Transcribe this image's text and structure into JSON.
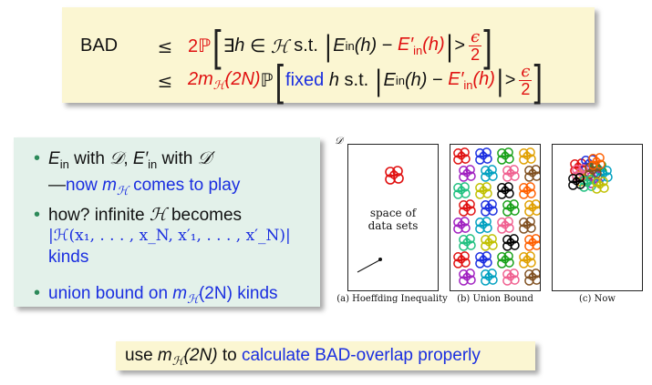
{
  "equation": {
    "bad": "BAD",
    "le": "≤",
    "line1": {
      "coef": "2ℙ",
      "body_a": "∃",
      "h": "h",
      "in": "∈",
      "H": "ℋ",
      "st": "s.t.",
      "E": "E",
      "in_sub": "in",
      "paren_h": "(h)",
      "minus": "−",
      "Eprime": "E′",
      "gt": ">",
      "eps": "ϵ",
      "two": "2"
    },
    "line2": {
      "coef": "2m",
      "H_sub": "ℋ",
      "arg": "(2N)",
      "P": "ℙ",
      "fixed": "fixed",
      "h": "h",
      "st": "s.t.",
      "E": "E",
      "in_sub": "in",
      "paren_h": "(h)",
      "minus": "−",
      "Eprime": "E′",
      "gt": ">",
      "eps": "ϵ",
      "two": "2"
    }
  },
  "bullets": {
    "b1_line1_pre": "E",
    "b1_line1_sub": "in",
    "b1_line1_mid": " with ",
    "b1_line1_D": "𝒟",
    "b1_line1_sep": ", ",
    "b1_line1_E2": "E′",
    "b1_line1_sub2": "in",
    "b1_line1_mid2": " with ",
    "b1_line1_D2": "𝒟′",
    "b1_line2_dash": "—",
    "b1_line2_blue_a": "now ",
    "b1_line2_m": "m",
    "b1_line2_msub": "ℋ",
    "b1_line2_blue_b": " comes to play",
    "b2_line1": "how? infinite ",
    "b2_line1_H": "ℋ",
    "b2_line1_end": " becomes",
    "b2_line2": "|ℋ(x₁, . . . , x_N, x′₁, . . . , x′_N)|",
    "b2_line3": "kinds",
    "b3_a": "union bound on ",
    "b3_m": "m",
    "b3_msub": "ℋ",
    "b3_b": "(2N) kinds"
  },
  "figures": {
    "a_caption": "(a) Hoeffding Inequality",
    "a_space_line1": "space of",
    "a_space_line2": "data sets",
    "a_D": "𝒟",
    "b_caption": "(b) Union Bound",
    "c_caption": "(c) Now"
  },
  "bottom": {
    "pre": "use ",
    "m": "m",
    "msub": "ℋ",
    "arg": "(2N)",
    "mid": " to ",
    "blue": "calculate BAD-overlap properly"
  },
  "colors": {
    "red": "#e01010",
    "blue": "#1a2ee0",
    "yellow_box": "#fbf6d2",
    "green_box": "#e3f1ea",
    "bullet_dot": "#2d8a5a"
  }
}
